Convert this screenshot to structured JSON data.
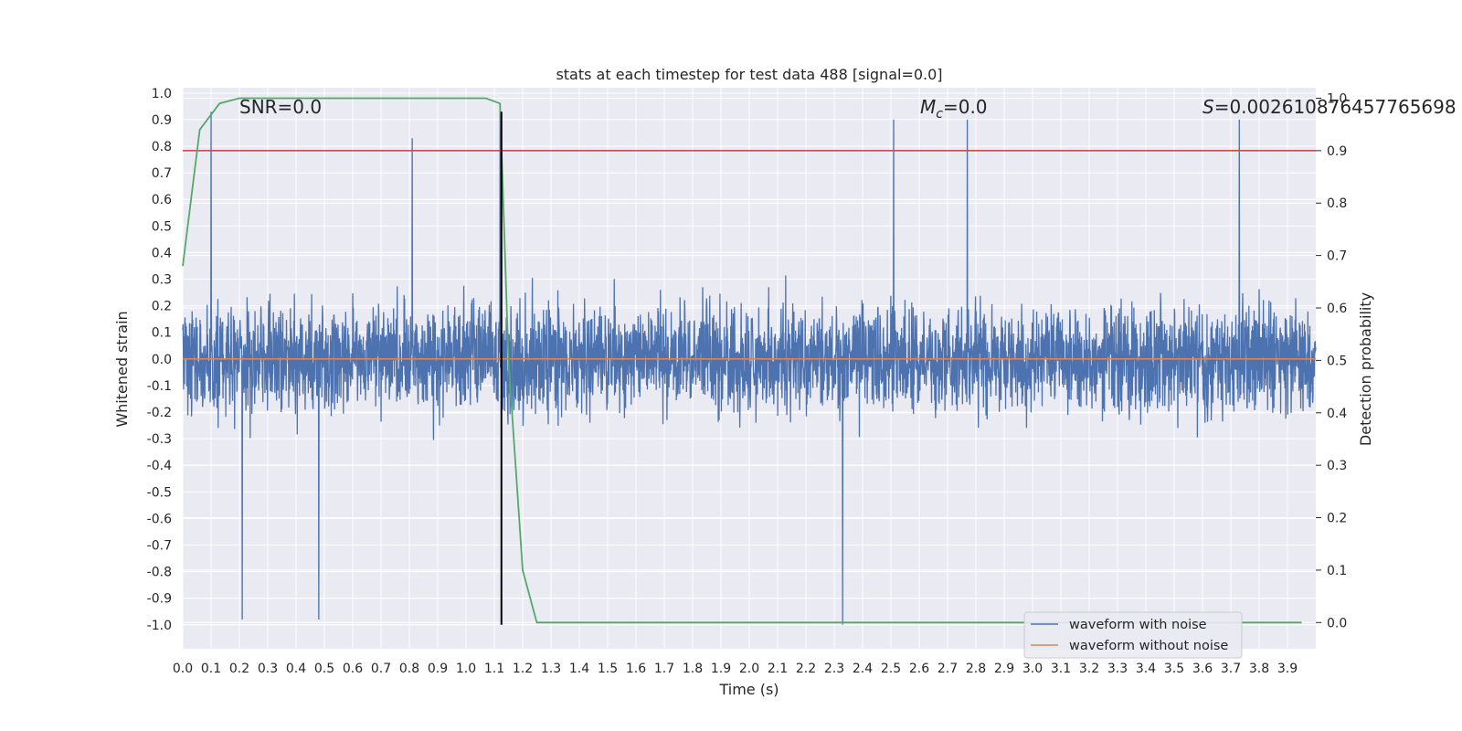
{
  "chart_data": {
    "type": "line",
    "title": "stats at each timestep for test data 488 [signal=0.0]",
    "xlabel": "Time (s)",
    "ylabel_left": "Whitened strain",
    "ylabel_right": "Detection probability",
    "xlim": [
      0.0,
      4.0
    ],
    "ylim_left": [
      -1.09,
      1.02
    ],
    "ylim_right": [
      -0.05,
      1.02
    ],
    "xticks": [
      "0.0",
      "0.1",
      "0.2",
      "0.3",
      "0.4",
      "0.5",
      "0.6",
      "0.7",
      "0.8",
      "0.9",
      "1.0",
      "1.1",
      "1.2",
      "1.3",
      "1.4",
      "1.5",
      "1.6",
      "1.7",
      "1.8",
      "1.9",
      "2.0",
      "2.1",
      "2.2",
      "2.3",
      "2.4",
      "2.5",
      "2.6",
      "2.7",
      "2.8",
      "2.9",
      "3.0",
      "3.1",
      "3.2",
      "3.3",
      "3.4",
      "3.5",
      "3.6",
      "3.7",
      "3.8",
      "3.9"
    ],
    "yticks_left": [
      "1.0",
      "0.9",
      "0.8",
      "0.7",
      "0.6",
      "0.5",
      "0.4",
      "0.3",
      "0.2",
      "0.1",
      "0.0",
      "-0.1",
      "-0.2",
      "-0.3",
      "-0.4",
      "-0.5",
      "-0.6",
      "-0.7",
      "-0.8",
      "-0.9",
      "-1.0"
    ],
    "yticks_right": [
      "1.0",
      "0.9",
      "0.8",
      "0.7",
      "0.6",
      "0.5",
      "0.4",
      "0.3",
      "0.2",
      "0.1",
      "0.0"
    ],
    "annotations": {
      "snr": "SNR=0.0",
      "mc_symbol": "M",
      "mc_sub": "c",
      "mc_value": "=0.0",
      "s_symbol": "S",
      "s_value": "=0.002610876457765698"
    },
    "series": [
      {
        "name": "waveform with noise",
        "color": "#4c72b0",
        "axis": "left",
        "description": "dense noise signal, roughly within -1.0..0.93",
        "peaks": [
          {
            "x": 0.1,
            "y": 0.93
          },
          {
            "x": 0.21,
            "y": -0.98
          },
          {
            "x": 0.48,
            "y": -0.98
          },
          {
            "x": 0.81,
            "y": 0.83
          },
          {
            "x": 1.12,
            "y": 0.93
          },
          {
            "x": 2.33,
            "y": -1.0
          },
          {
            "x": 2.51,
            "y": 0.9
          },
          {
            "x": 2.77,
            "y": 0.9
          },
          {
            "x": 3.73,
            "y": 0.9
          }
        ]
      },
      {
        "name": "waveform without noise",
        "color": "#dd8452",
        "axis": "left",
        "x": [
          0.0,
          4.0
        ],
        "y": [
          0.0,
          0.0
        ]
      },
      {
        "name": "detection probability",
        "color": "#55a868",
        "axis": "right",
        "x": [
          0.0,
          0.06,
          0.13,
          0.2,
          0.5,
          0.8,
          1.0,
          1.07,
          1.12,
          1.15,
          1.2,
          1.25,
          1.3,
          1.5,
          2.0,
          2.1,
          2.5,
          3.0,
          3.5,
          3.95
        ],
        "y": [
          0.68,
          0.94,
          0.99,
          1.0,
          1.0,
          1.0,
          1.0,
          1.0,
          0.99,
          0.5,
          0.1,
          0.0,
          0.0,
          0.0,
          0.0,
          0.0,
          0.0,
          0.0,
          0.0,
          0.0
        ]
      }
    ],
    "threshold": {
      "axis": "right",
      "y": 0.9,
      "color": "#c44e52"
    },
    "vline": {
      "x": 1.125,
      "ymin": -1.0,
      "ymax": 0.93,
      "color": "#000000"
    },
    "legend": {
      "location": "lower-right",
      "entries": [
        {
          "label": "waveform with noise",
          "color": "#4c72b0"
        },
        {
          "label": "waveform without noise",
          "color": "#dd8452"
        }
      ]
    },
    "colors": {
      "axes_bg": "#eaeaf2",
      "grid": "#ffffff"
    }
  }
}
